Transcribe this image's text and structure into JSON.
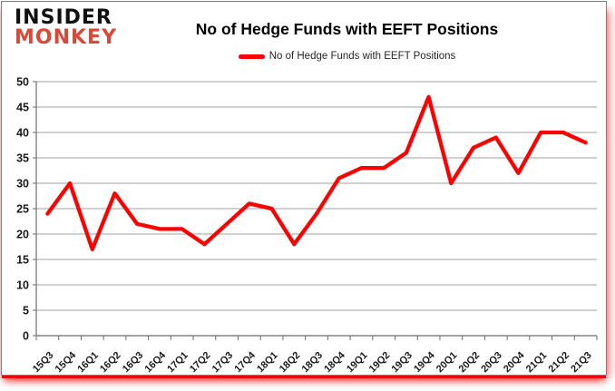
{
  "header": {
    "logo_line1": "INSIDER",
    "logo_line2": "MONKEY",
    "title": "No of Hedge Funds with EEFT Positions"
  },
  "legend": {
    "label": "No of Hedge Funds with EEFT Positions"
  },
  "colors": {
    "line_red": "#FE0000",
    "logo_red": "#D9493A",
    "grid": "#A0A0A0",
    "axis": "#6E6E6E",
    "tick_text": "#1A1A1A",
    "card_border": "#7F7F7F",
    "bottom_glow_red": "#FF0000"
  },
  "chart_data": {
    "type": "line",
    "title": "No of Hedge Funds with EEFT Positions",
    "legend_entries": [
      "No of Hedge Funds with EEFT Positions"
    ],
    "legend_position": "top",
    "grid": true,
    "line_color": "#FE0000",
    "categories": [
      "15Q3",
      "15Q4",
      "16Q1",
      "16Q2",
      "16Q3",
      "16Q4",
      "17Q1",
      "17Q2",
      "17Q3",
      "17Q4",
      "18Q1",
      "18Q2",
      "18Q3",
      "18Q4",
      "19Q1",
      "19Q2",
      "19Q3",
      "19Q4",
      "20Q1",
      "20Q2",
      "20Q3",
      "20Q4",
      "21Q1",
      "21Q2",
      "21Q3"
    ],
    "values": [
      24,
      30,
      17,
      28,
      22,
      21,
      21,
      18,
      22,
      26,
      25,
      18,
      24,
      31,
      33,
      33,
      36,
      47,
      30,
      37,
      39,
      32,
      40,
      40,
      38
    ],
    "xlabel": "",
    "ylabel": "",
    "ylim": [
      0,
      50
    ],
    "ytick_step": 5
  }
}
